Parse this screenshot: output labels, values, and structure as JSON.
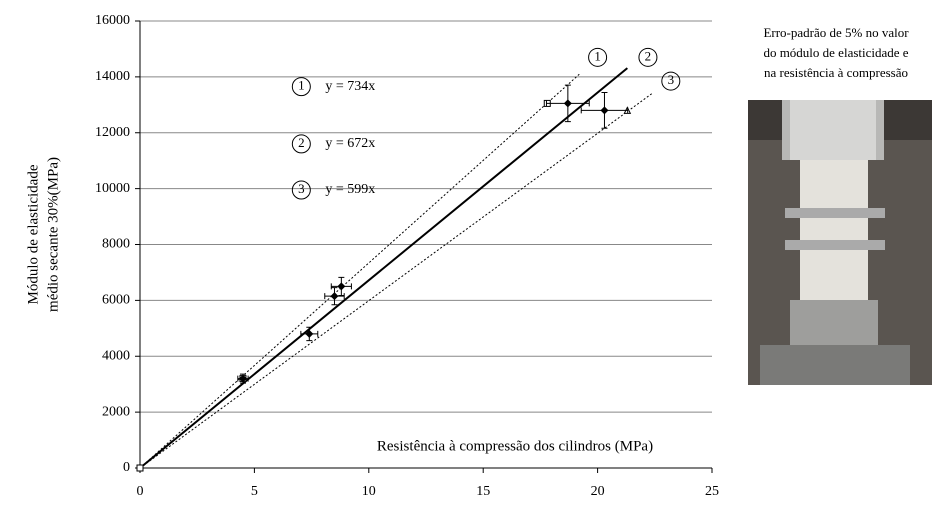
{
  "chart_data": {
    "type": "scatter",
    "ylabel": [
      "Módulo de elasticidade",
      "médio secante 30%(MPa)"
    ],
    "xlabel": "Resistência à compressão dos cilindros (MPa)",
    "xlim": [
      0,
      25
    ],
    "xticks": [
      0,
      5,
      10,
      15,
      20,
      25
    ],
    "ylim": [
      0,
      16000
    ],
    "yticks": [
      0,
      2000,
      4000,
      6000,
      8000,
      10000,
      12000,
      14000,
      16000
    ],
    "grid": true,
    "color": "#000000",
    "points": {
      "x": [
        4.5,
        7.4,
        8.5,
        8.8,
        18.7,
        20.3
      ],
      "y": [
        3200,
        4800,
        6150,
        6500,
        13050,
        12800
      ],
      "xerr": [
        0.225,
        0.37,
        0.425,
        0.44,
        0.935,
        1.015
      ],
      "yerr": [
        160,
        240,
        308,
        325,
        653,
        640
      ]
    },
    "reference_points": {
      "x": [
        0,
        4.5,
        17.8,
        21.3
      ],
      "y": [
        0,
        3200,
        13050,
        12800
      ],
      "markers": [
        "square",
        "square",
        "square",
        "triangle"
      ]
    },
    "lines": [
      {
        "label": "1",
        "equation": "y = 734x",
        "slope": 734,
        "x_end": 19.2,
        "style": "dotted",
        "label_pos": [
          20,
          14700
        ],
        "equation_pos": [
          8.1,
          13650
        ]
      },
      {
        "label": "2",
        "equation": "y = 672x",
        "slope": 672,
        "x_end": 21.3,
        "style": "solid",
        "label_pos": [
          22.2,
          14700
        ],
        "equation_pos": [
          8.1,
          11600
        ]
      },
      {
        "label": "3",
        "equation": "y = 599x",
        "slope": 599,
        "x_end": 22.4,
        "style": "dotted",
        "label_pos": [
          23.2,
          13850
        ],
        "equation_pos": [
          8.1,
          9950
        ]
      }
    ],
    "annotation": [
      "Erro-padrão de 5% no valor",
      "do módulo de elasticidade e",
      "na resistência à compressão"
    ]
  }
}
